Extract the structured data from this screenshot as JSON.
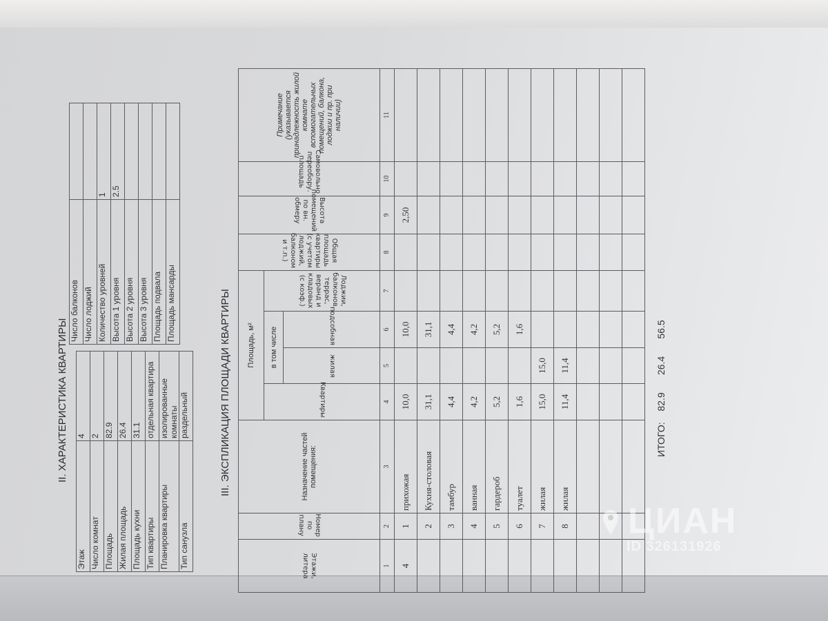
{
  "section2": {
    "title": "II. ХАРАКТЕРИСТИКА КВАРТИРЫ",
    "left_rows": [
      {
        "label": "Этаж",
        "value": "4"
      },
      {
        "label": "Число комнат",
        "value": "2"
      },
      {
        "label": "Площадь",
        "value": "82.9"
      },
      {
        "label": "Жилая площадь",
        "value": "26.4"
      },
      {
        "label": "Площадь кухни",
        "value": "31.1"
      },
      {
        "label": "Тип квартиры",
        "value": "отдельная квартира"
      },
      {
        "label": "Планировка квартиры",
        "value": "изолированные комнаты"
      },
      {
        "label": "Тип санузла",
        "value": "раздельный"
      }
    ],
    "right_rows": [
      {
        "label": "Число балконов",
        "value": ""
      },
      {
        "label": "Число лоджий",
        "value": ""
      },
      {
        "label": "Количество уровней",
        "value": "1"
      },
      {
        "label": "Высота 1 уровня",
        "value": "2.5"
      },
      {
        "label": "Высота 2 уровня",
        "value": ""
      },
      {
        "label": "Высота 3 уровня",
        "value": ""
      },
      {
        "label": "Площадь подвала",
        "value": ""
      },
      {
        "label": "Площадь мансарды",
        "value": ""
      }
    ]
  },
  "section3": {
    "title": "III. ЭКСПЛИКАЦИЯ ПЛОЩАДИ КВАРТИРЫ",
    "headers": {
      "floor": "Этажи, литера",
      "plan_number": "Номер по плану",
      "purpose": "Назначение частей помещения:",
      "area": "Площадь, м²",
      "apartment": "Квартиры",
      "including": "в том числе",
      "living": "жилая",
      "auxiliary": "подсобная",
      "loggias": "Лоджии, балконов, террас, веранд и кладовых (с коэф.)",
      "total_area": "Общая площадь квартиры (с учетом лоджий, балконом и т.п.)",
      "height": "Высота помещений по вн. обмеру",
      "unauthorized": "Самовольно переобору. площадь",
      "note": "Примечание (указывается принадлежность жилой комнате вспомогательных помещений, балкона, лоджии и пр. при наличии)"
    },
    "column_numbers": [
      "1",
      "2",
      "3",
      "4",
      "5",
      "6",
      "7",
      "8",
      "9",
      "10",
      "11"
    ],
    "rows": [
      {
        "floor": "4",
        "num": "1",
        "name": "прихожая",
        "apartment": "10,0",
        "living": "",
        "auxiliary": "10,0",
        "loggia": "",
        "total": "",
        "height": "2,50",
        "unauth": "",
        "note": ""
      },
      {
        "floor": "",
        "num": "2",
        "name": "Кухня-столовая",
        "apartment": "31,1",
        "living": "",
        "auxiliary": "31,1",
        "loggia": "",
        "total": "",
        "height": "",
        "unauth": "",
        "note": ""
      },
      {
        "floor": "",
        "num": "3",
        "name": "тамбур",
        "apartment": "4,4",
        "living": "",
        "auxiliary": "4,4",
        "loggia": "",
        "total": "",
        "height": "",
        "unauth": "",
        "note": ""
      },
      {
        "floor": "",
        "num": "4",
        "name": "ванная",
        "apartment": "4,2",
        "living": "",
        "auxiliary": "4,2",
        "loggia": "",
        "total": "",
        "height": "",
        "unauth": "",
        "note": ""
      },
      {
        "floor": "",
        "num": "5",
        "name": "гардероб",
        "apartment": "5,2",
        "living": "",
        "auxiliary": "5,2",
        "loggia": "",
        "total": "",
        "height": "",
        "unauth": "",
        "note": ""
      },
      {
        "floor": "",
        "num": "6",
        "name": "туалет",
        "apartment": "1,6",
        "living": "",
        "auxiliary": "1,6",
        "loggia": "",
        "total": "",
        "height": "",
        "unauth": "",
        "note": ""
      },
      {
        "floor": "",
        "num": "7",
        "name": "жилая",
        "apartment": "15,0",
        "living": "15,0",
        "auxiliary": "",
        "loggia": "",
        "total": "",
        "height": "",
        "unauth": "",
        "note": ""
      },
      {
        "floor": "",
        "num": "8",
        "name": "жилая",
        "apartment": "11,4",
        "living": "11,4",
        "auxiliary": "",
        "loggia": "",
        "total": "",
        "height": "",
        "unauth": "",
        "note": ""
      },
      {
        "floor": "",
        "num": "",
        "name": "",
        "apartment": "",
        "living": "",
        "auxiliary": "",
        "loggia": "",
        "total": "",
        "height": "",
        "unauth": "",
        "note": ""
      },
      {
        "floor": "",
        "num": "",
        "name": "",
        "apartment": "",
        "living": "",
        "auxiliary": "",
        "loggia": "",
        "total": "",
        "height": "",
        "unauth": "",
        "note": ""
      },
      {
        "floor": "",
        "num": "",
        "name": "",
        "apartment": "",
        "living": "",
        "auxiliary": "",
        "loggia": "",
        "total": "",
        "height": "",
        "unauth": "",
        "note": ""
      }
    ],
    "total": {
      "label": "ИТОГО:",
      "apartment": "82.9",
      "living": "26.4",
      "auxiliary": "56.5"
    }
  },
  "watermark": {
    "logo": "ЦИАН",
    "id": "ID 326131926"
  }
}
